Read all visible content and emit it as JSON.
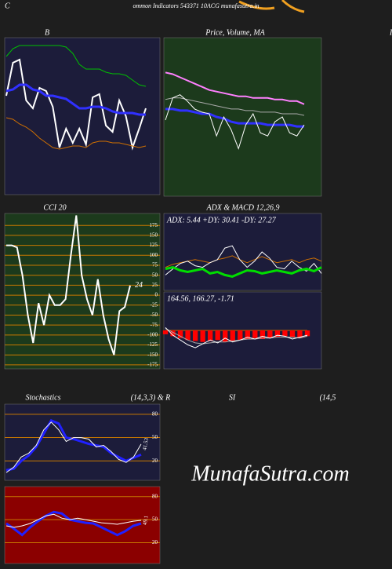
{
  "header": {
    "left": "C",
    "title": "ommon Indicators 543371 10ACG munafasutra.in",
    "edge": "I"
  },
  "watermark": "MunafaSutra.com",
  "chart_data": [
    {
      "type": "line",
      "title": "B",
      "background": "#1c1c3a",
      "ylim": [
        0,
        100
      ],
      "series": [
        {
          "color": "#00c000",
          "width": 1,
          "values": [
            88,
            93,
            95,
            95,
            95,
            95,
            95,
            95,
            95,
            94,
            90,
            83,
            80,
            80,
            80,
            78,
            77,
            77,
            76,
            73,
            70,
            69
          ]
        },
        {
          "color": "#ffffff",
          "width": 2,
          "values": [
            63,
            84,
            86,
            60,
            55,
            68,
            66,
            56,
            30,
            42,
            33,
            42,
            32,
            62,
            64,
            44,
            40,
            60,
            50,
            30,
            42,
            55
          ]
        },
        {
          "color": "#3030ff",
          "width": 3,
          "values": [
            66,
            67,
            70,
            70,
            67,
            66,
            63,
            63,
            62,
            61,
            58,
            55,
            55,
            56,
            56,
            55,
            53,
            52,
            52,
            52,
            51,
            51
          ]
        },
        {
          "color": "#d07000",
          "width": 1,
          "values": [
            49,
            48,
            45,
            43,
            40,
            36,
            33,
            30,
            29,
            30,
            31,
            31,
            30,
            33,
            34,
            34,
            33,
            33,
            32,
            31,
            30,
            31
          ]
        }
      ]
    },
    {
      "type": "line",
      "title": "Price, Volume, MA",
      "background": "#1c3a1c",
      "ylim": [
        0,
        100
      ],
      "series": [
        {
          "color": "#ff80ff",
          "width": 2,
          "values": [
            78,
            77,
            75,
            73,
            71,
            69,
            67,
            66,
            65,
            64,
            63,
            63,
            62,
            62,
            62,
            61,
            61,
            60,
            60,
            58
          ]
        },
        {
          "color": "#aaaaaa",
          "width": 1,
          "values": [
            61,
            62,
            62,
            61,
            60,
            59,
            58,
            57,
            56,
            55,
            55,
            54,
            54,
            53,
            53,
            53,
            52,
            52,
            52,
            51
          ]
        },
        {
          "color": "#3030ff",
          "width": 3,
          "values": [
            55,
            55,
            54,
            54,
            53,
            52,
            52,
            50,
            49,
            47,
            46,
            46,
            46,
            46,
            45,
            45,
            45,
            45,
            44,
            44
          ]
        },
        {
          "color": "#ffffff",
          "width": 1,
          "values": [
            48,
            62,
            64,
            60,
            55,
            53,
            52,
            38,
            50,
            42,
            30,
            45,
            52,
            40,
            38,
            47,
            50,
            40,
            38,
            45
          ]
        }
      ]
    },
    {
      "type": "line",
      "title": "CCI 20",
      "background": "#1c3a1c",
      "grid": true,
      "grid_color": "#c87800",
      "ylim": [
        -185,
        205
      ],
      "yticks": [
        175,
        150,
        125,
        100,
        75,
        50,
        25,
        0,
        -25,
        -50,
        -75,
        -100,
        -125,
        -150,
        -175
      ],
      "end_label_series": 0,
      "series": [
        {
          "color": "#ffffff",
          "width": 2,
          "values": [
            125,
            125,
            120,
            50,
            -50,
            -120,
            -20,
            -75,
            0,
            -25,
            -25,
            -10,
            100,
            200,
            50,
            -10,
            -50,
            40,
            -50,
            -110,
            -150,
            -40,
            -30,
            24
          ]
        }
      ]
    },
    {
      "type": "line",
      "title": "ADX  & MACD 12,26,9",
      "annotation": "ADX: 5.44  +DY: 30.41 -DY: 27.27",
      "background": "#1c1c3a",
      "ylim": [
        0,
        100
      ],
      "series": [
        {
          "color": "#d07000",
          "width": 1,
          "values": [
            30,
            34,
            36,
            38,
            40,
            38,
            36,
            40,
            42,
            45,
            40,
            36,
            40,
            44,
            40,
            36,
            38,
            40,
            36,
            40,
            42,
            38
          ]
        },
        {
          "color": "#ffffff",
          "width": 1,
          "values": [
            20,
            28,
            35,
            38,
            32,
            30,
            36,
            40,
            55,
            58,
            40,
            30,
            38,
            50,
            42,
            30,
            28,
            38,
            30,
            25,
            35,
            22
          ]
        },
        {
          "color": "#00dd00",
          "width": 3,
          "values": [
            28,
            30,
            26,
            24,
            26,
            28,
            22,
            24,
            20,
            18,
            22,
            26,
            25,
            22,
            24,
            26,
            24,
            22,
            26,
            28,
            25,
            30
          ]
        }
      ]
    },
    {
      "type": "line",
      "annotation": "164.56, 166.27, -1.71",
      "background": "#1c1c3a",
      "ylim": [
        -4,
        4
      ],
      "series": [
        {
          "type": "bar",
          "color": "#ff0000",
          "values": [
            -0.4,
            -0.6,
            -0.8,
            -1.0,
            -1.1,
            -1.2,
            -1.1,
            -1.0,
            -1.2,
            -1.1,
            -1.0,
            -0.9,
            -0.8,
            -0.9,
            -0.8,
            -0.7,
            -0.6,
            -0.7,
            -0.8,
            -0.6
          ]
        },
        {
          "color": "#aaaaaa",
          "width": 1,
          "values": [
            0.2,
            -0.2,
            -0.6,
            -1.0,
            -1.3,
            -1.4,
            -1.3,
            -1.2,
            -1.2,
            -1.1,
            -1.0,
            -0.9,
            -0.9,
            -0.8,
            -0.8,
            -0.7,
            -0.7,
            -0.7,
            -0.8,
            -0.6
          ]
        },
        {
          "color": "#ffffff",
          "width": 1,
          "values": [
            0.3,
            -0.5,
            -1.0,
            -1.5,
            -1.8,
            -1.4,
            -1.0,
            -1.3,
            -0.8,
            -1.2,
            -1.0,
            -0.7,
            -0.9,
            -0.6,
            -0.8,
            -0.5,
            -0.6,
            -0.9,
            -0.7,
            -0.5
          ]
        }
      ]
    },
    {
      "type": "line",
      "title": "Stochastics",
      "subtitle": "(14,3,3) & R",
      "background": "#1c1c3a",
      "grid": true,
      "grid_color": "#c87800",
      "ylim": [
        -5,
        93
      ],
      "yticks": [
        80,
        50,
        20
      ],
      "end_label_series": 1,
      "series": [
        {
          "color": "#2020ff",
          "width": 3,
          "values": [
            8,
            10,
            20,
            27,
            38,
            55,
            72,
            68,
            50,
            48,
            45,
            42,
            40,
            38,
            30,
            25,
            20,
            24,
            28
          ]
        },
        {
          "color": "#ffffff",
          "width": 1,
          "values": [
            5,
            12,
            25,
            30,
            40,
            60,
            70,
            60,
            45,
            50,
            50,
            48,
            38,
            40,
            32,
            22,
            18,
            25,
            41.53
          ]
        }
      ]
    },
    {
      "type": "line",
      "title": "SI",
      "subtitle": "(14,5",
      "background": "#8b0000",
      "grid": true,
      "grid_color": "#c87800",
      "ylim": [
        -7,
        93
      ],
      "yticks": [
        80,
        50,
        20
      ],
      "end_label_series": 1,
      "series": [
        {
          "color": "#2020ff",
          "width": 3,
          "values": [
            45,
            38,
            30,
            40,
            48,
            55,
            60,
            58,
            50,
            48,
            46,
            45,
            40,
            35,
            30,
            35,
            42,
            45
          ]
        },
        {
          "color": "#ffffff",
          "width": 1,
          "values": [
            42,
            40,
            42,
            45,
            50,
            55,
            57,
            52,
            50,
            52,
            50,
            48,
            46,
            45,
            44,
            46,
            48,
            49.1
          ]
        }
      ]
    }
  ]
}
